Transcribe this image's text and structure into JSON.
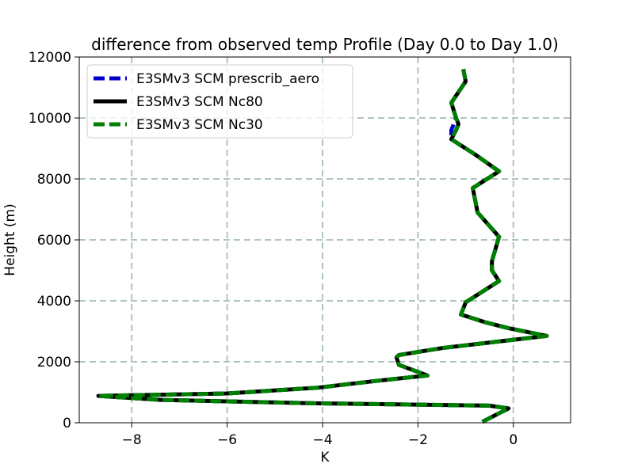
{
  "chart_data": {
    "type": "line",
    "title": "difference from observed temp Profile (Day 0.0 to Day 1.0)",
    "xlabel": "K",
    "ylabel": "Height (m)",
    "xlim": [
      -9.1,
      1.2
    ],
    "ylim": [
      0,
      12000
    ],
    "xticks": [
      -8,
      -6,
      -4,
      -2,
      0
    ],
    "xtick_labels": [
      "−8",
      "−6",
      "−4",
      "−2",
      "0"
    ],
    "yticks": [
      0,
      2000,
      4000,
      6000,
      8000,
      10000,
      12000
    ],
    "ytick_labels": [
      "0",
      "2000",
      "4000",
      "6000",
      "8000",
      "10000",
      "12000"
    ],
    "grid": true,
    "legend_position": "upper-left",
    "series": [
      {
        "name": "E3SMv3 SCM prescrib_aero",
        "color": "#0000cc",
        "style": "dashed",
        "points": [
          [
            -0.65,
            30
          ],
          [
            -0.1,
            470
          ],
          [
            -0.5,
            560
          ],
          [
            -4.2,
            640
          ],
          [
            -7.4,
            750
          ],
          [
            -8.7,
            880
          ],
          [
            -6.0,
            960
          ],
          [
            -4.1,
            1150
          ],
          [
            -2.9,
            1370
          ],
          [
            -1.8,
            1550
          ],
          [
            -2.4,
            1900
          ],
          [
            -2.45,
            2150
          ],
          [
            -2.4,
            2220
          ],
          [
            -1.5,
            2450
          ],
          [
            -0.4,
            2650
          ],
          [
            0.7,
            2850
          ],
          [
            -0.1,
            3100
          ],
          [
            -0.6,
            3300
          ],
          [
            -1.1,
            3550
          ],
          [
            -1.0,
            3950
          ],
          [
            -0.85,
            4100
          ],
          [
            -0.3,
            4650
          ],
          [
            -0.45,
            5000
          ],
          [
            -0.45,
            5300
          ],
          [
            -0.3,
            6100
          ],
          [
            -0.75,
            6900
          ],
          [
            -0.8,
            7300
          ],
          [
            -0.85,
            7700
          ],
          [
            -0.3,
            8250
          ],
          [
            -0.8,
            8800
          ],
          [
            -1.3,
            9300
          ],
          [
            -1.3,
            9600
          ],
          [
            -1.25,
            9800
          ],
          [
            -1.2,
            10000
          ],
          [
            -1.3,
            10500
          ],
          [
            -1.0,
            11200
          ],
          [
            -1.05,
            11600
          ]
        ]
      },
      {
        "name": "E3SMv3 SCM Nc80",
        "color": "#000000",
        "style": "solid",
        "points": [
          [
            -0.65,
            30
          ],
          [
            -0.1,
            470
          ],
          [
            -0.5,
            560
          ],
          [
            -4.2,
            640
          ],
          [
            -7.4,
            750
          ],
          [
            -8.7,
            880
          ],
          [
            -6.0,
            960
          ],
          [
            -4.1,
            1150
          ],
          [
            -2.9,
            1370
          ],
          [
            -1.8,
            1550
          ],
          [
            -2.4,
            1900
          ],
          [
            -2.45,
            2150
          ],
          [
            -2.4,
            2220
          ],
          [
            -1.5,
            2450
          ],
          [
            -0.4,
            2650
          ],
          [
            0.7,
            2850
          ],
          [
            -0.1,
            3100
          ],
          [
            -0.6,
            3300
          ],
          [
            -1.1,
            3550
          ],
          [
            -1.0,
            3950
          ],
          [
            -0.85,
            4100
          ],
          [
            -0.3,
            4650
          ],
          [
            -0.45,
            5000
          ],
          [
            -0.45,
            5300
          ],
          [
            -0.3,
            6100
          ],
          [
            -0.75,
            6900
          ],
          [
            -0.8,
            7300
          ],
          [
            -0.85,
            7700
          ],
          [
            -0.3,
            8250
          ],
          [
            -0.8,
            8800
          ],
          [
            -1.3,
            9300
          ],
          [
            -1.2,
            9600
          ],
          [
            -1.15,
            9800
          ],
          [
            -1.2,
            10000
          ],
          [
            -1.3,
            10500
          ],
          [
            -1.0,
            11200
          ],
          [
            -1.05,
            11600
          ]
        ]
      },
      {
        "name": "E3SMv3 SCM Nc30",
        "color": "#008000",
        "style": "dashed",
        "points": [
          [
            -0.65,
            30
          ],
          [
            -0.1,
            470
          ],
          [
            -0.5,
            560
          ],
          [
            -4.2,
            640
          ],
          [
            -7.4,
            750
          ],
          [
            -8.7,
            880
          ],
          [
            -6.0,
            960
          ],
          [
            -4.1,
            1150
          ],
          [
            -2.9,
            1370
          ],
          [
            -1.8,
            1550
          ],
          [
            -2.4,
            1900
          ],
          [
            -2.45,
            2150
          ],
          [
            -2.4,
            2220
          ],
          [
            -1.5,
            2450
          ],
          [
            -0.4,
            2650
          ],
          [
            0.7,
            2850
          ],
          [
            -0.1,
            3100
          ],
          [
            -0.6,
            3300
          ],
          [
            -1.1,
            3550
          ],
          [
            -1.0,
            3950
          ],
          [
            -0.85,
            4100
          ],
          [
            -0.3,
            4650
          ],
          [
            -0.45,
            5000
          ],
          [
            -0.45,
            5300
          ],
          [
            -0.3,
            6100
          ],
          [
            -0.75,
            6900
          ],
          [
            -0.8,
            7300
          ],
          [
            -0.85,
            7700
          ],
          [
            -0.3,
            8250
          ],
          [
            -0.8,
            8800
          ],
          [
            -1.3,
            9300
          ],
          [
            -1.2,
            9600
          ],
          [
            -1.15,
            9800
          ],
          [
            -1.2,
            10000
          ],
          [
            -1.3,
            10500
          ],
          [
            -1.0,
            11200
          ],
          [
            -1.05,
            11600
          ]
        ]
      }
    ]
  }
}
